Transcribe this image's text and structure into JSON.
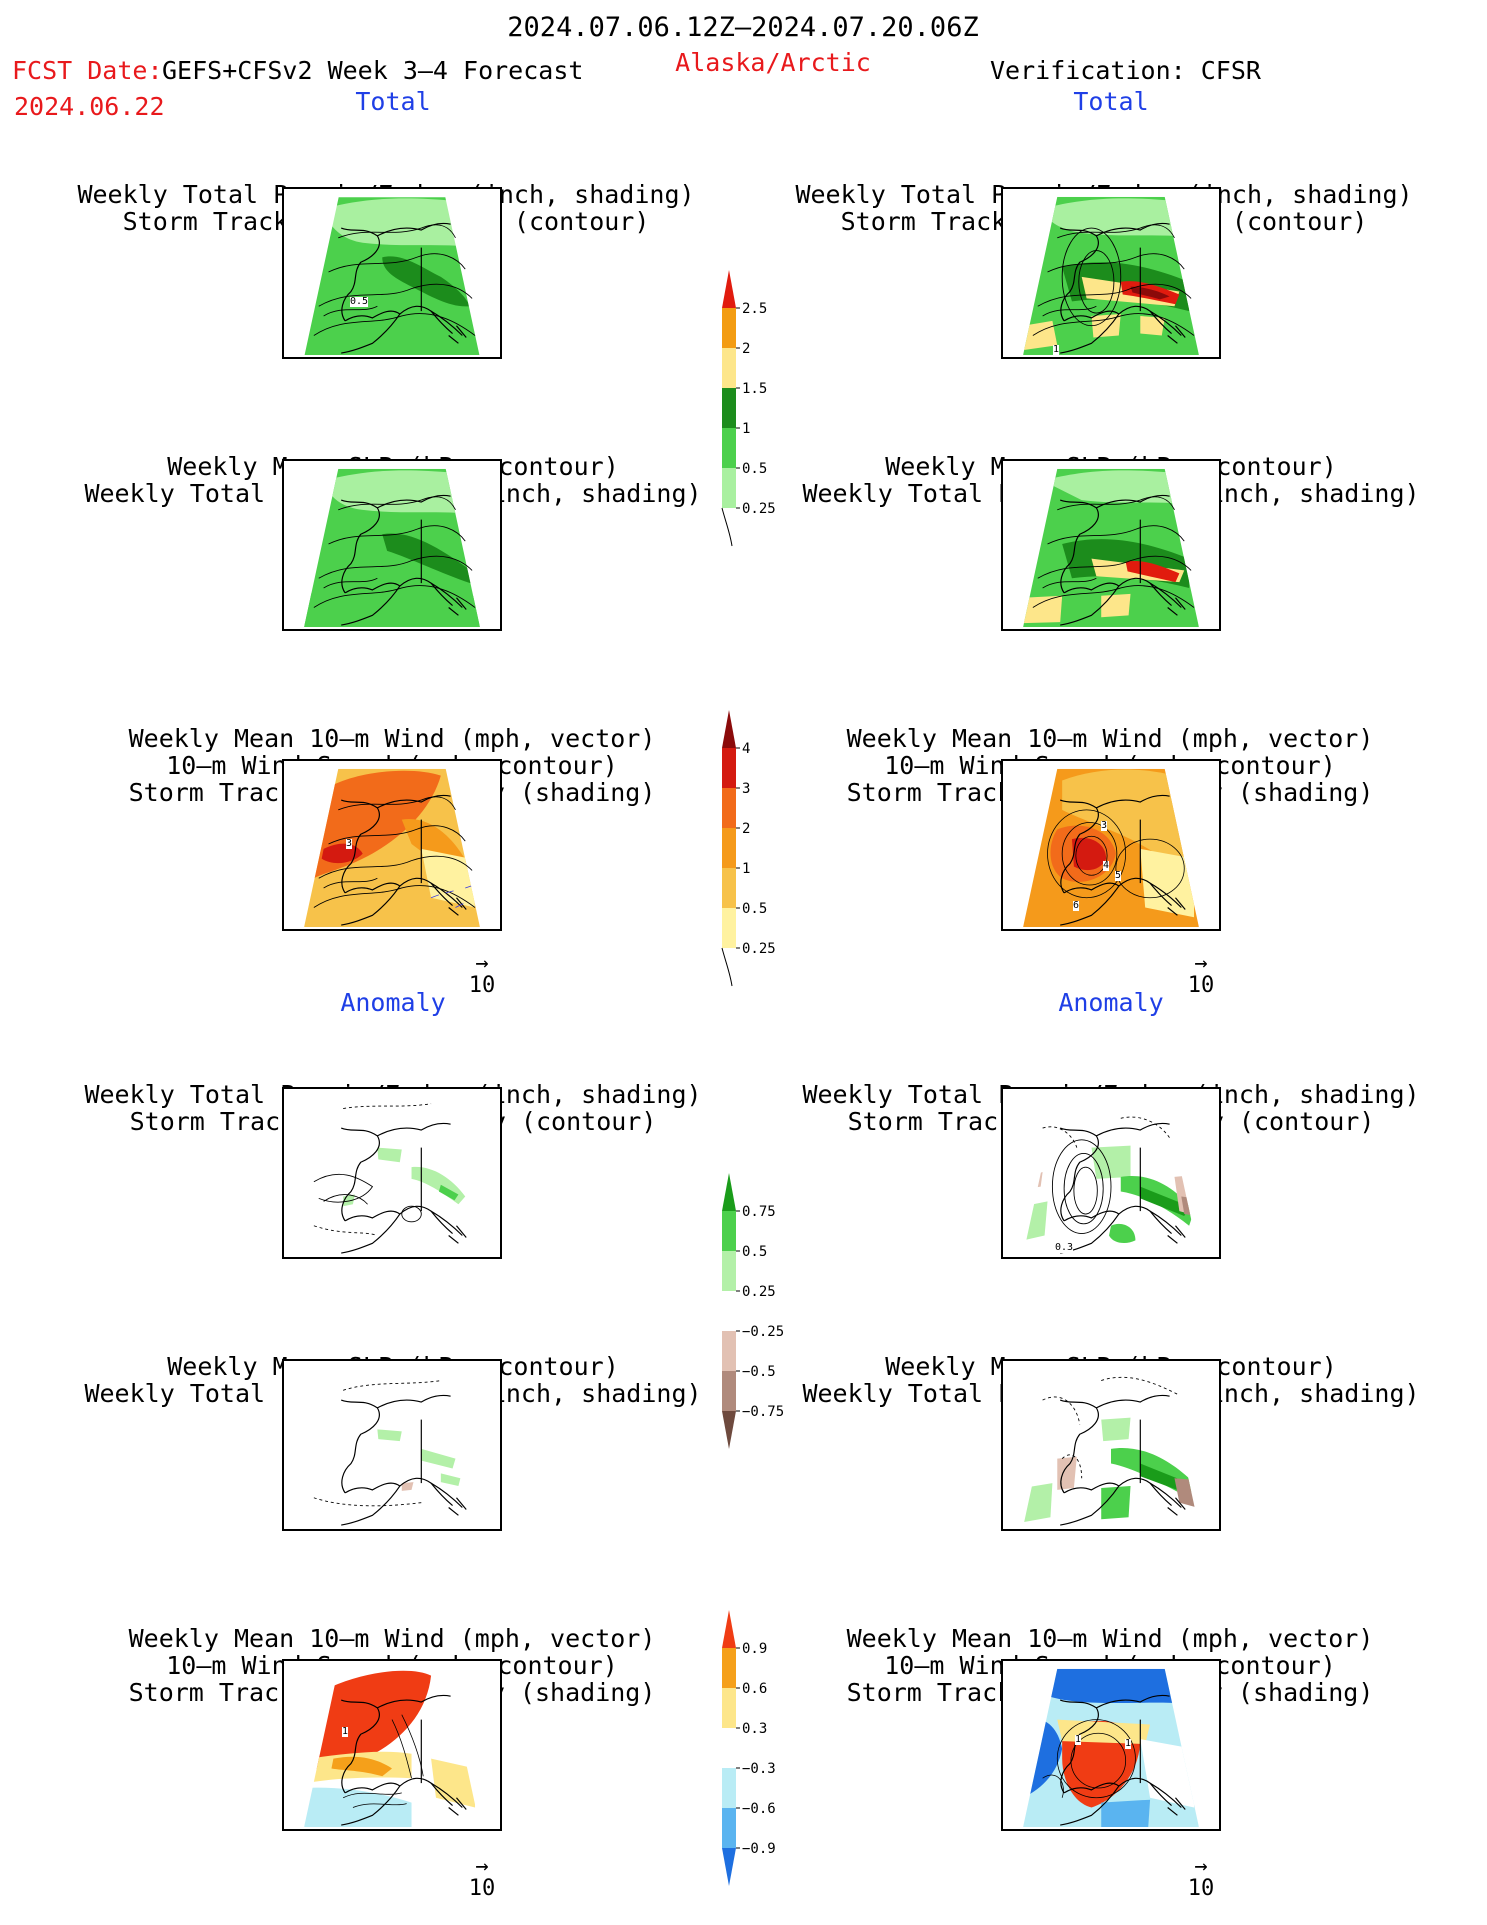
{
  "header": {
    "date_range": "2024.07.06.12Z–2024.07.20.06Z",
    "fcst_label": "FCST Date:",
    "model": "GEFS+CFSv2 Week 3–4 Forecast",
    "region": "Alaska/Arctic",
    "verification": "Verification: CFSR",
    "fcst_date": "2024.06.22"
  },
  "sections": {
    "total_left": "Total",
    "total_right": "Total",
    "anomaly_left": "Anomaly",
    "anomaly_right": "Anomaly"
  },
  "titles": {
    "precip_storm": [
      "Weekly Total Precip/7–day (inch, shading)",
      "Storm Track Density/7–day (contour)"
    ],
    "slp_precip": [
      "Weekly Mean SLP (hPa, contour)",
      "Weekly Total Precip/7–day (inch, shading)"
    ],
    "wind": [
      "Weekly Mean 10–m Wind (mph, vector)",
      "10–m Wind Speed (mph, contour)",
      "Storm Track Density/7–day (shading)"
    ]
  },
  "map_labels": {
    "t1_left": "0.5",
    "t1_right": "1",
    "t3_left": "3",
    "t3_right_a": "3",
    "t3_right_b": "4",
    "t3_right_c": "5",
    "t3_right_d": "6",
    "a1_right": "0.3",
    "a3_left": "1",
    "a3_right_a": "1",
    "a3_right_b": "1"
  },
  "vector_ref": "10",
  "colorbars": {
    "precip_total": {
      "labels": [
        "2.5",
        "2",
        "1.5",
        "1",
        "0.5",
        "0.25"
      ],
      "colors": [
        "#e11b0e",
        "#f39c12",
        "#fde68a",
        "#1c8c1c",
        "#4cd04c",
        "#a9f0a0"
      ]
    },
    "storm_total": {
      "labels": [
        "4",
        "3",
        "2",
        "1",
        "0.5",
        "0.25"
      ],
      "colors": [
        "#8b0a0a",
        "#d41a10",
        "#f26b1a",
        "#f59a1b",
        "#f7c24a",
        "#fff2a0"
      ]
    },
    "precip_anom": {
      "labels": [
        "0.75",
        "0.5",
        "0.25",
        "−0.25",
        "−0.5",
        "−0.75"
      ],
      "colors": [
        "#1a9c1a",
        "#4cd04c",
        "#b3f0a8",
        "#ffffff",
        "#e2c1b3",
        "#b08a7c",
        "#6e4a3e"
      ]
    },
    "storm_anom": {
      "labels": [
        "0.9",
        "0.6",
        "0.3",
        "−0.3",
        "−0.6",
        "−0.9"
      ],
      "colors": [
        "#f03c14",
        "#f5a01a",
        "#fde68a",
        "#ffffff",
        "#b9ecf5",
        "#5ab4f0",
        "#1e6fe0"
      ]
    }
  }
}
